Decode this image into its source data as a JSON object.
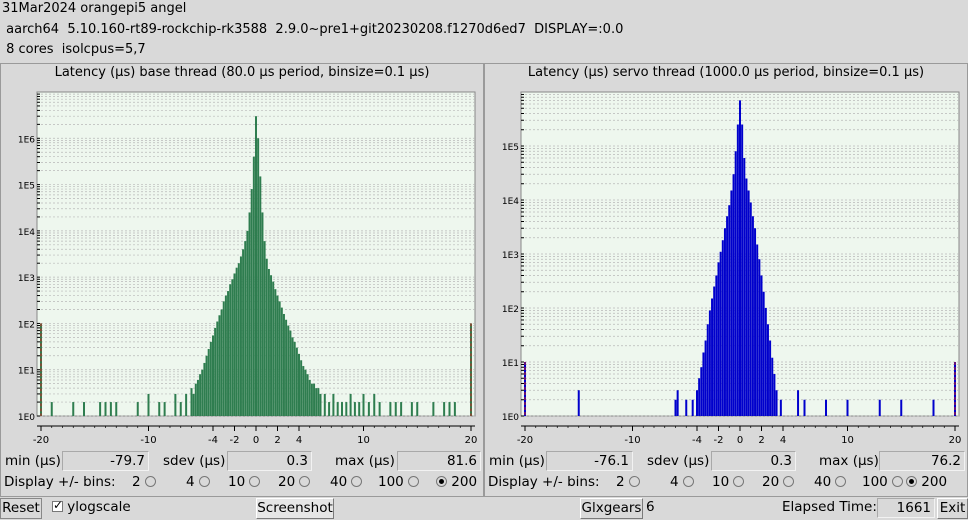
{
  "info": {
    "line1": "31Mar2024 orangepi5 angel",
    "line2": " aarch64  5.10.160-rt89-rockchip-rk3588  2.9.0~pre1+git20230208.f1270d6ed7  DISPLAY=:0.0",
    "line3": " 8 cores  isolcpus=5,7"
  },
  "labels": {
    "min": "min (µs)",
    "sdev": "sdev (µs)",
    "max": "max (µs)",
    "bins": "Display +/- bins:"
  },
  "bin_options": [
    "2",
    "4",
    "10",
    "20",
    "40",
    "100",
    "200"
  ],
  "selected_bins": "200",
  "colors": {
    "base": "#2e7d4f",
    "servo": "#0000cc",
    "plot_bg": "#eef7ee",
    "grid": "#b8b8b8",
    "edge": "#cc2222"
  },
  "base": {
    "title": "Latency (µs) base thread (80.0 µs period, binsize=0.1 µs)",
    "min": "-79.7",
    "sdev": "0.3",
    "max": "81.6"
  },
  "servo": {
    "title": "Latency (µs) servo thread (1000.0 µs period, binsize=0.1 µs)",
    "min": "-76.1",
    "sdev": "0.3",
    "max": "76.2"
  },
  "bottom": {
    "reset": "Reset",
    "ylogscale": "ylogscale",
    "screenshot": "Screenshot",
    "glxgears": "Glxgears",
    "glxgears_count": "6",
    "elapsed_label": "Elapsed Time:",
    "elapsed_value": "1661",
    "exit": "Exit"
  },
  "chart_data": [
    {
      "type": "bar",
      "title": "Latency (µs) base thread (80.0 µs period, binsize=0.1 µs)",
      "yscale": "log",
      "ylim": [
        1,
        10000000
      ],
      "y_tick_labels": [
        "1E0",
        "1E1",
        "1E2",
        "1E3",
        "1E4",
        "1E5",
        "1E6"
      ],
      "x_tick_labels": [
        "-20",
        "-10",
        "-4",
        "-2",
        "0",
        "2",
        "4",
        "10",
        "20"
      ],
      "x_tick_values": [
        -20,
        -10,
        -4,
        -2,
        0,
        2,
        4,
        10,
        20
      ],
      "xlim": [
        -20,
        20
      ],
      "edge_bins": [
        {
          "x": -20,
          "y": 100
        },
        {
          "x": 20,
          "y": 100
        }
      ],
      "points": [
        [
          -19,
          2
        ],
        [
          -18,
          1
        ],
        [
          -17,
          2
        ],
        [
          -16,
          2
        ],
        [
          -15,
          1
        ],
        [
          -14.5,
          2
        ],
        [
          -14,
          2
        ],
        [
          -13.5,
          2
        ],
        [
          -13,
          2
        ],
        [
          -12,
          1
        ],
        [
          -11,
          2
        ],
        [
          -10.5,
          1
        ],
        [
          -10,
          3
        ],
        [
          -9.5,
          1
        ],
        [
          -9,
          2
        ],
        [
          -8.5,
          2
        ],
        [
          -8,
          1
        ],
        [
          -7.5,
          3
        ],
        [
          -7,
          2
        ],
        [
          -6.5,
          3
        ],
        [
          -6,
          4
        ],
        [
          -5.8,
          3
        ],
        [
          -5.6,
          5
        ],
        [
          -5.4,
          6
        ],
        [
          -5.2,
          8
        ],
        [
          -5,
          10
        ],
        [
          -4.8,
          14
        ],
        [
          -4.6,
          20
        ],
        [
          -4.4,
          28
        ],
        [
          -4.2,
          40
        ],
        [
          -4,
          55
        ],
        [
          -3.8,
          80
        ],
        [
          -3.6,
          110
        ],
        [
          -3.4,
          150
        ],
        [
          -3.2,
          200
        ],
        [
          -3,
          300
        ],
        [
          -2.8,
          400
        ],
        [
          -2.6,
          500
        ],
        [
          -2.4,
          700
        ],
        [
          -2.2,
          900
        ],
        [
          -2,
          1200
        ],
        [
          -1.8,
          1600
        ],
        [
          -1.6,
          2000
        ],
        [
          -1.4,
          2800
        ],
        [
          -1.2,
          4000
        ],
        [
          -1,
          6000
        ],
        [
          -0.8,
          10000
        ],
        [
          -0.6,
          25000
        ],
        [
          -0.4,
          80000
        ],
        [
          -0.2,
          400000
        ],
        [
          0,
          3000000
        ],
        [
          0.2,
          1000000
        ],
        [
          0.4,
          150000
        ],
        [
          0.6,
          25000
        ],
        [
          0.8,
          6000
        ],
        [
          1,
          2500
        ],
        [
          1.2,
          1500
        ],
        [
          1.4,
          1100
        ],
        [
          1.6,
          800
        ],
        [
          1.8,
          550
        ],
        [
          2,
          400
        ],
        [
          2.2,
          300
        ],
        [
          2.4,
          220
        ],
        [
          2.6,
          160
        ],
        [
          2.8,
          120
        ],
        [
          3,
          90
        ],
        [
          3.2,
          70
        ],
        [
          3.4,
          50
        ],
        [
          3.6,
          40
        ],
        [
          3.8,
          30
        ],
        [
          4,
          22
        ],
        [
          4.2,
          16
        ],
        [
          4.4,
          12
        ],
        [
          4.6,
          10
        ],
        [
          4.8,
          8
        ],
        [
          5,
          6
        ],
        [
          5.2,
          5
        ],
        [
          5.4,
          5
        ],
        [
          5.6,
          4
        ],
        [
          5.8,
          4
        ],
        [
          6,
          3
        ],
        [
          6.4,
          3
        ],
        [
          6.8,
          2
        ],
        [
          7.2,
          3
        ],
        [
          7.6,
          2
        ],
        [
          8,
          2
        ],
        [
          8.4,
          2
        ],
        [
          8.8,
          3
        ],
        [
          9.2,
          2
        ],
        [
          9.6,
          2
        ],
        [
          10,
          3
        ],
        [
          10.5,
          2
        ],
        [
          11,
          3
        ],
        [
          11.5,
          2
        ],
        [
          12,
          1
        ],
        [
          12.5,
          2
        ],
        [
          13,
          2
        ],
        [
          13.5,
          2
        ],
        [
          14,
          1
        ],
        [
          14.5,
          2
        ],
        [
          15,
          2
        ],
        [
          15.5,
          1
        ],
        [
          16,
          1
        ],
        [
          16.5,
          2
        ],
        [
          17,
          1
        ],
        [
          17.5,
          2
        ],
        [
          18,
          2
        ],
        [
          18.5,
          2
        ],
        [
          19,
          1
        ]
      ]
    },
    {
      "type": "bar",
      "title": "Latency (µs) servo thread (1000.0 µs period, binsize=0.1 µs)",
      "yscale": "log",
      "ylim": [
        1,
        1000000
      ],
      "y_tick_labels": [
        "1E0",
        "1E1",
        "1E2",
        "1E3",
        "1E4",
        "1E5"
      ],
      "x_tick_labels": [
        "-20",
        "-10",
        "-4",
        "-2",
        "0",
        "2",
        "4",
        "10",
        "20"
      ],
      "x_tick_values": [
        -20,
        -10,
        -4,
        -2,
        0,
        2,
        4,
        10,
        20
      ],
      "xlim": [
        -20,
        20
      ],
      "edge_bins": [
        {
          "x": -20,
          "y": 10
        },
        {
          "x": 20,
          "y": 10
        }
      ],
      "points": [
        [
          -19,
          1
        ],
        [
          -17,
          1
        ],
        [
          -16,
          1
        ],
        [
          -15,
          3
        ],
        [
          -14,
          1
        ],
        [
          -13,
          1
        ],
        [
          -12,
          1
        ],
        [
          -11,
          1
        ],
        [
          -10,
          1
        ],
        [
          -9,
          1
        ],
        [
          -8,
          1
        ],
        [
          -7,
          1
        ],
        [
          -6,
          2
        ],
        [
          -5.8,
          3
        ],
        [
          -5.4,
          1
        ],
        [
          -5,
          2
        ],
        [
          -4.8,
          1
        ],
        [
          -4.4,
          2
        ],
        [
          -4,
          3
        ],
        [
          -3.8,
          5
        ],
        [
          -3.6,
          8
        ],
        [
          -3.4,
          15
        ],
        [
          -3.2,
          25
        ],
        [
          -3,
          50
        ],
        [
          -2.8,
          90
        ],
        [
          -2.6,
          150
        ],
        [
          -2.4,
          250
        ],
        [
          -2.2,
          400
        ],
        [
          -2,
          700
        ],
        [
          -1.8,
          1100
        ],
        [
          -1.6,
          1800
        ],
        [
          -1.4,
          3000
        ],
        [
          -1.2,
          5000
        ],
        [
          -1,
          8000
        ],
        [
          -0.8,
          15000
        ],
        [
          -0.6,
          30000
        ],
        [
          -0.4,
          80000
        ],
        [
          -0.2,
          250000
        ],
        [
          0,
          700000
        ],
        [
          0.2,
          250000
        ],
        [
          0.4,
          60000
        ],
        [
          0.6,
          25000
        ],
        [
          0.8,
          15000
        ],
        [
          1,
          9000
        ],
        [
          1.2,
          5000
        ],
        [
          1.4,
          3000
        ],
        [
          1.6,
          1500
        ],
        [
          1.8,
          800
        ],
        [
          2,
          400
        ],
        [
          2.2,
          200
        ],
        [
          2.4,
          100
        ],
        [
          2.6,
          50
        ],
        [
          2.8,
          25
        ],
        [
          3,
          12
        ],
        [
          3.2,
          6
        ],
        [
          3.4,
          3
        ],
        [
          3.8,
          2
        ],
        [
          4.4,
          1
        ],
        [
          5,
          1
        ],
        [
          5.4,
          3
        ],
        [
          6,
          2
        ],
        [
          7,
          1
        ],
        [
          8,
          2
        ],
        [
          9,
          1
        ],
        [
          10,
          2
        ],
        [
          11,
          1
        ],
        [
          12,
          1
        ],
        [
          13,
          2
        ],
        [
          13.5,
          1
        ],
        [
          14,
          1
        ],
        [
          15,
          2
        ],
        [
          16,
          1
        ],
        [
          17,
          1
        ],
        [
          18,
          2
        ],
        [
          19,
          1
        ]
      ]
    }
  ]
}
